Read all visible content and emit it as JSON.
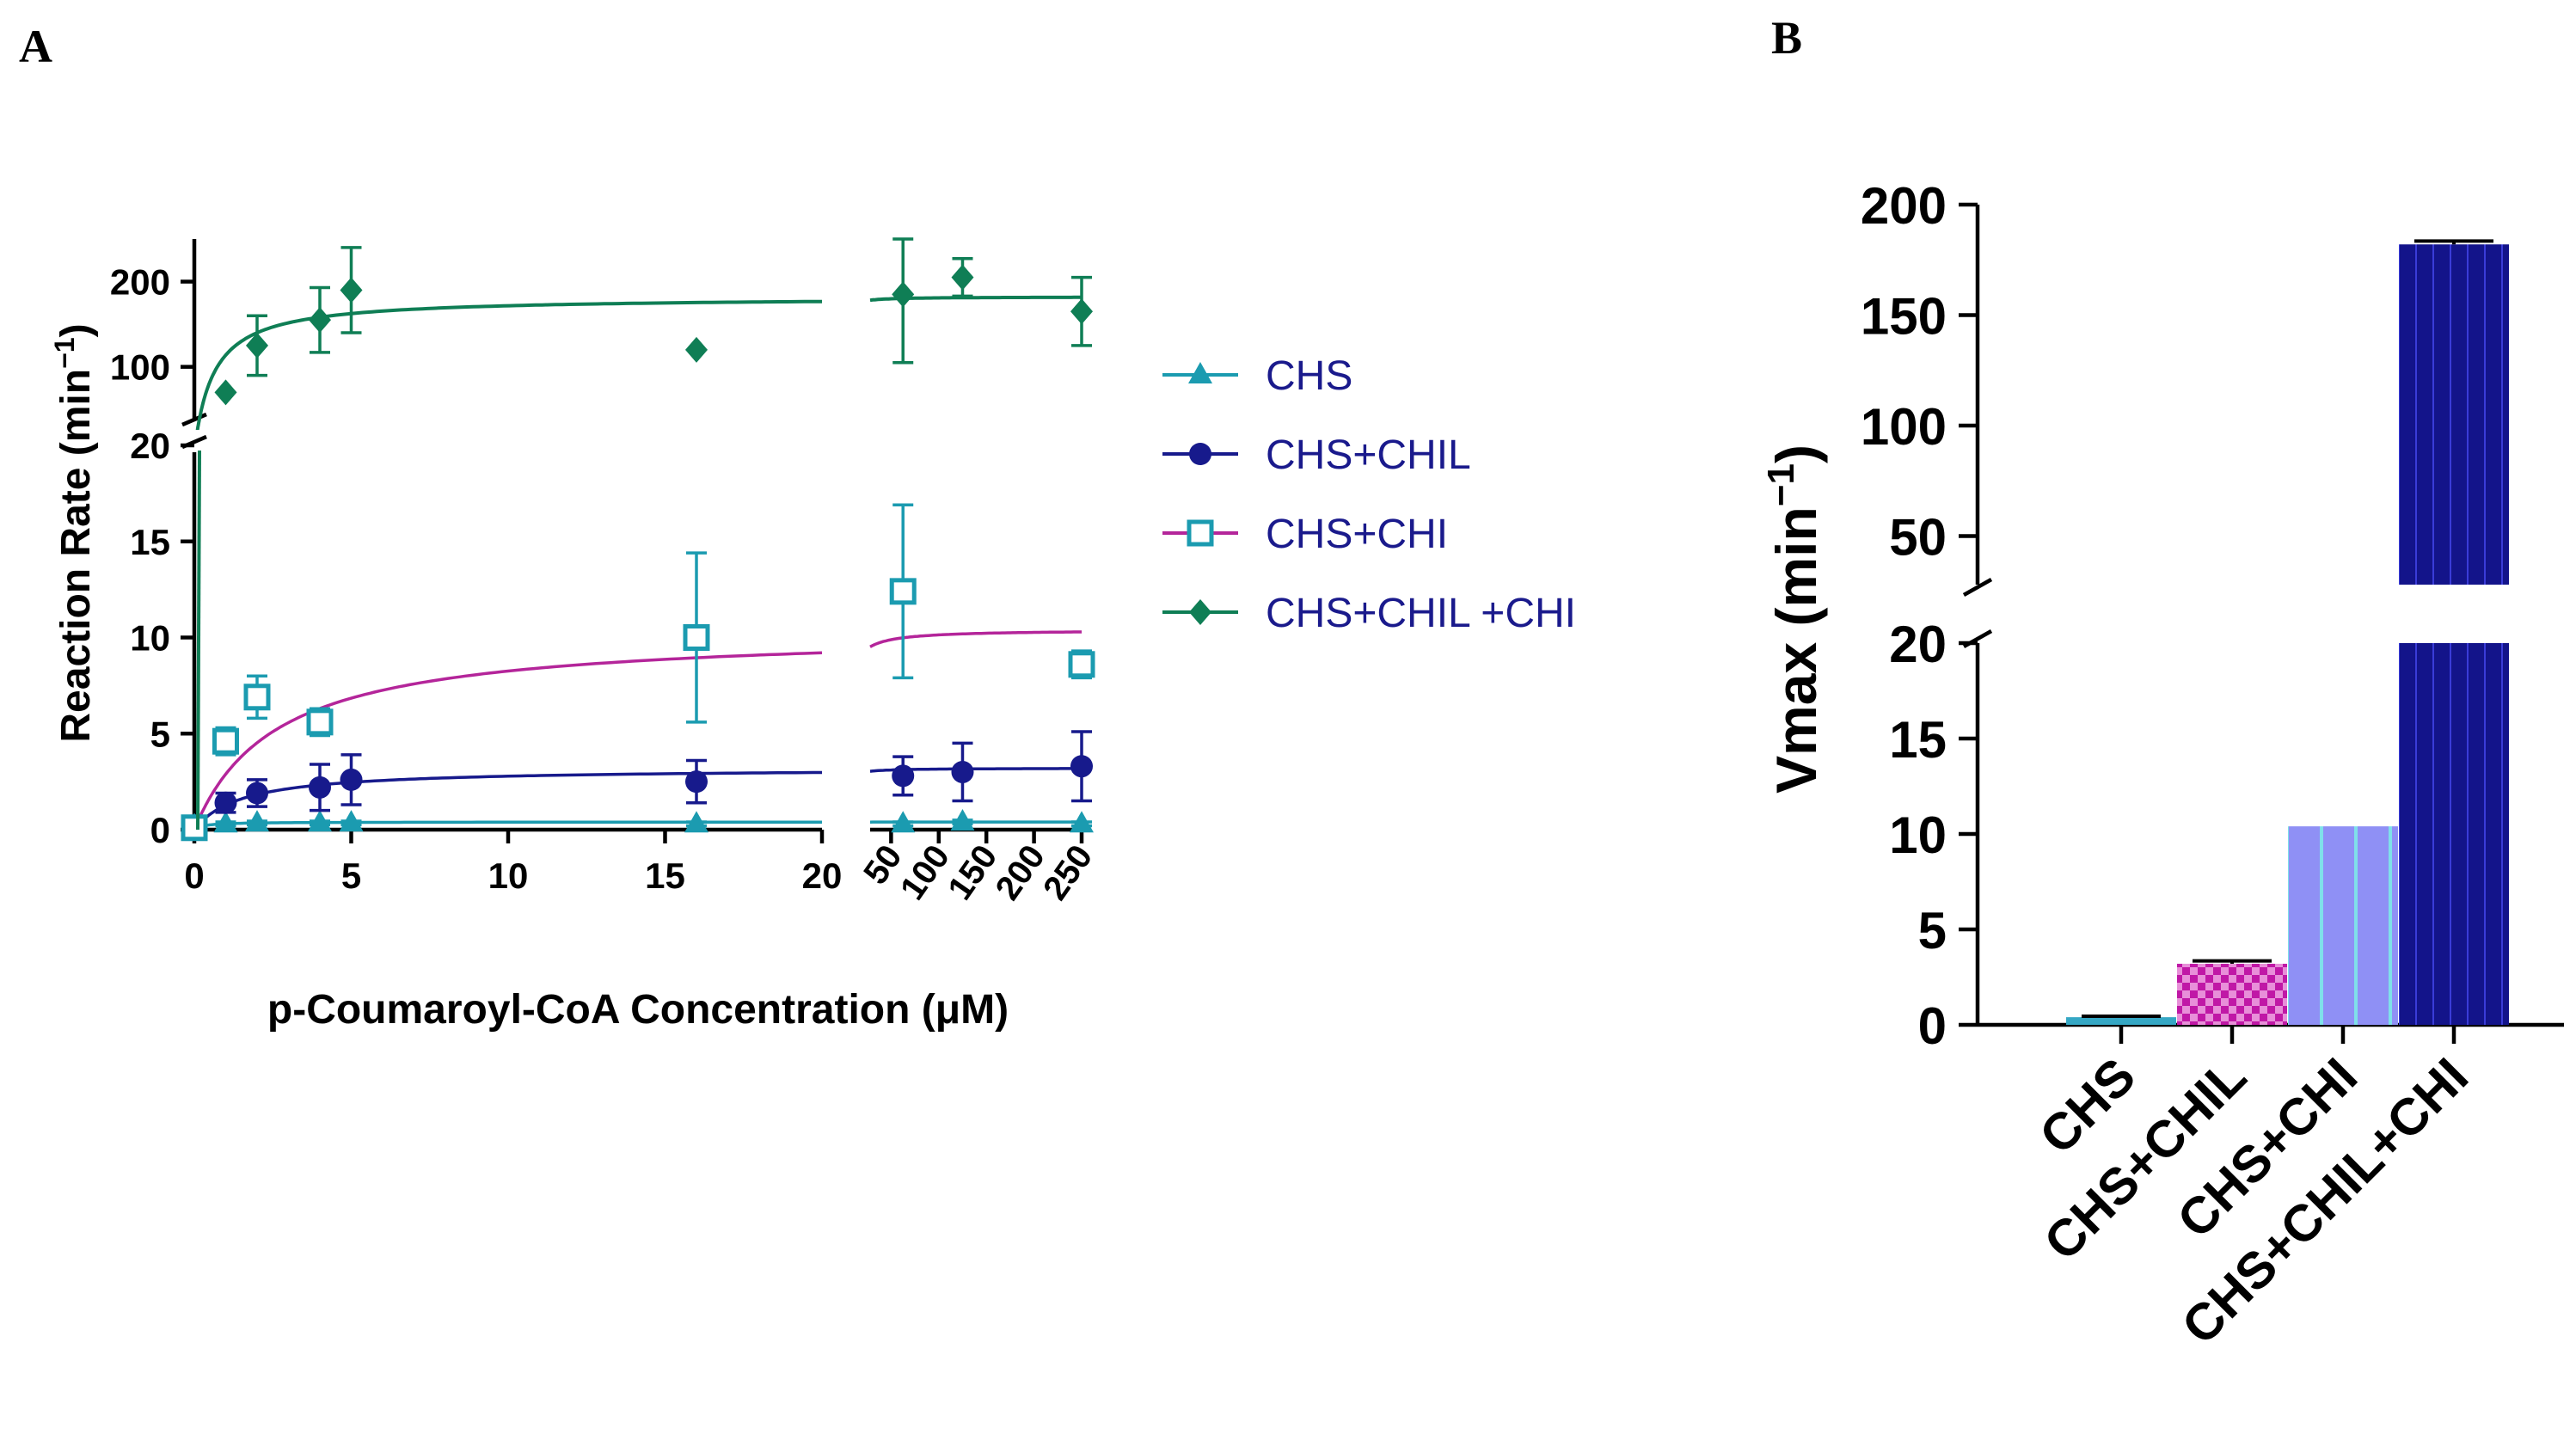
{
  "panels": {
    "a": {
      "letter": "A"
    },
    "b": {
      "letter": "B"
    }
  },
  "chart_data": [
    {
      "type": "scatter",
      "panel": "A",
      "xlabel": "p-Coumaroyl-CoA Concentration (μM)",
      "ylabel": "Reaction Rate (min",
      "ylabel_superscript": "−1",
      "ylabel_suffix": ")",
      "x_segments": [
        {
          "range": [
            0,
            20
          ],
          "ticks": [
            0,
            5,
            10,
            15,
            20
          ]
        },
        {
          "range": [
            28,
            250
          ],
          "ticks": [
            50,
            100,
            150,
            200,
            250
          ]
        }
      ],
      "y_segments": [
        {
          "range": [
            0,
            20
          ],
          "ticks": [
            0,
            5,
            10,
            15,
            20
          ]
        },
        {
          "range": [
            24,
            250
          ],
          "ticks": [
            100,
            200
          ]
        }
      ],
      "legend": {
        "position": "right"
      },
      "series": [
        {
          "name": "CHS",
          "marker": "triangle",
          "color": "#1b9bb0",
          "x": [
            0,
            1,
            2,
            4,
            5,
            16,
            62.5,
            125,
            250
          ],
          "y": [
            0.2,
            0.3,
            0.35,
            0.35,
            0.35,
            0.3,
            0.3,
            0.4,
            0.3
          ],
          "err": [
            0.1,
            0.1,
            0.1,
            0.1,
            0.1,
            0.1,
            0.1,
            0.1,
            0.1
          ],
          "fit": {
            "vmax": 0.4,
            "km": 0.3
          }
        },
        {
          "name": "CHS+CHIL",
          "marker": "circle",
          "color": "#171a8c",
          "x": [
            0,
            1,
            2,
            4,
            5,
            16,
            62.5,
            125,
            250
          ],
          "y": [
            0.2,
            1.4,
            1.9,
            2.2,
            2.6,
            2.5,
            2.8,
            3.0,
            3.3
          ],
          "err": [
            0.2,
            0.5,
            0.7,
            1.2,
            1.3,
            1.1,
            1.0,
            1.5,
            1.8
          ],
          "fit": {
            "vmax": 3.2,
            "km": 1.5
          }
        },
        {
          "name": "CHS+CHI",
          "marker": "open-square",
          "color": "#1b9bb0",
          "fit_color": "#b4259a",
          "x": [
            0,
            1,
            2,
            4,
            16,
            62.5,
            250
          ],
          "y": [
            0.1,
            4.6,
            6.9,
            5.6,
            10.0,
            12.4,
            8.6
          ],
          "err": [
            0.2,
            0.7,
            1.1,
            0.7,
            4.4,
            4.5,
            0.7
          ],
          "fit": {
            "vmax": 10.4,
            "km": 2.6
          }
        },
        {
          "name": "CHS+CHIL +CHI",
          "marker": "diamond",
          "color": "#0f7e55",
          "x": [
            1,
            2,
            4,
            5,
            16,
            62.5,
            125,
            250
          ],
          "y": [
            70,
            125,
            155,
            190,
            120,
            185,
            205,
            165
          ],
          "err": [
            0,
            35,
            38,
            50,
            0,
            80,
            22,
            40
          ],
          "fit": {
            "vmax": 182,
            "km": 0.6
          }
        }
      ]
    },
    {
      "type": "bar",
      "panel": "B",
      "ylabel": "Vmax (min",
      "ylabel_superscript": "−1",
      "ylabel_suffix": ")",
      "categories": [
        "CHS",
        "CHS+CHIL",
        "CHS+CHI",
        "CHS+CHIL+CHI"
      ],
      "values": [
        0.4,
        3.2,
        10.4,
        182
      ],
      "errors": [
        0.05,
        0.15,
        0,
        1.5
      ],
      "colors": [
        "#35a7c4",
        "#c018a6",
        "#8f90f5",
        "#13148a"
      ],
      "patterns": [
        "solid",
        "checker",
        "stripes",
        "stripes"
      ],
      "y_segments": [
        {
          "range": [
            0,
            20
          ],
          "ticks": [
            0,
            5,
            10,
            15,
            20
          ]
        },
        {
          "range": [
            28,
            200
          ],
          "ticks": [
            50,
            100,
            150,
            200
          ]
        }
      ]
    }
  ]
}
